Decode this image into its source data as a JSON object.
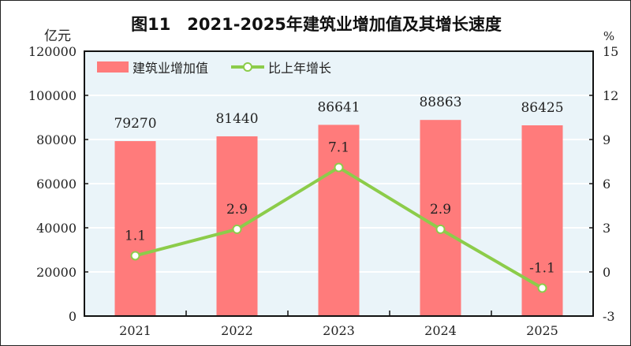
{
  "chart_data": {
    "type": "bar+line",
    "title": "图11　2021-2025年建筑业增加值及其增长速度",
    "categories": [
      "2021",
      "2022",
      "2023",
      "2024",
      "2025"
    ],
    "y_left": {
      "unit_label": "亿元",
      "range": [
        0,
        120000
      ],
      "ticks": [
        "0",
        "20000",
        "40000",
        "60000",
        "80000",
        "100000",
        "120000"
      ]
    },
    "y_right": {
      "unit_label": "%",
      "range": [
        -3,
        15
      ],
      "ticks": [
        "-3",
        "0",
        "3",
        "6",
        "9",
        "12",
        "15"
      ]
    },
    "grid": true,
    "legend_position": "top-left",
    "series": [
      {
        "name": "建筑业增加值",
        "type": "bar",
        "axis": "left",
        "color": "#ff7b7b",
        "values": [
          79270,
          81440,
          86641,
          88863,
          86425
        ],
        "labels": [
          "79270",
          "81440",
          "86641",
          "88863",
          "86425"
        ]
      },
      {
        "name": "比上年增长",
        "type": "line",
        "axis": "right",
        "color": "#8ccc4a",
        "values": [
          1.1,
          2.9,
          7.1,
          2.9,
          -1.1
        ],
        "labels": [
          "1.1",
          "2.9",
          "7.1",
          "2.9",
          "-1.1"
        ]
      }
    ],
    "background_color": "#eaf4f9"
  }
}
